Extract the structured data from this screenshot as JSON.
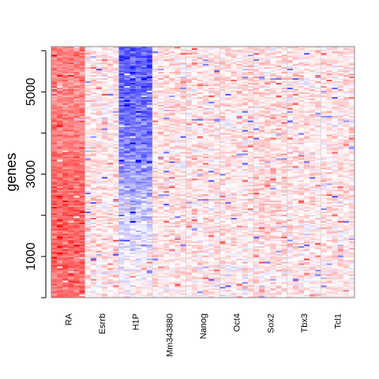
{
  "chart_data": {
    "type": "heatmap",
    "title": "",
    "xlabel": "",
    "ylabel": "genes",
    "ylim": [
      0,
      6100
    ],
    "y_ticks": [
      1000,
      3000,
      5000
    ],
    "y_minor_ticks": [
      0,
      1000,
      2000,
      3000,
      4000,
      5000,
      6000
    ],
    "categories": [
      "RA",
      "Esrrb",
      "H1P",
      "Mm343880",
      "Nanog",
      "Oct4",
      "Sox2",
      "Tbx3",
      "Tcl1"
    ],
    "color_scale": {
      "low": "#0000ff",
      "mid": "#ffffff",
      "high": "#ff0000"
    },
    "column_profile": [
      {
        "name": "RA",
        "mean_by_band": [
          0.55,
          0.6,
          0.62,
          0.55,
          0.5,
          0.48,
          0.5
        ],
        "noise": 0.22
      },
      {
        "name": "Esrrb",
        "mean_by_band": [
          0.05,
          0.1,
          0.12,
          0.1,
          0.08,
          0.1,
          0.1
        ],
        "noise": 0.25
      },
      {
        "name": "H1P",
        "mean_by_band": [
          0.05,
          -0.05,
          -0.2,
          -0.4,
          -0.55,
          -0.6,
          -0.65
        ],
        "noise": 0.25
      },
      {
        "name": "Mm343880",
        "mean_by_band": [
          0.08,
          0.1,
          0.12,
          0.1,
          0.1,
          0.12,
          0.1
        ],
        "noise": 0.25
      },
      {
        "name": "Nanog",
        "mean_by_band": [
          0.08,
          0.1,
          0.1,
          0.1,
          0.08,
          0.1,
          0.1
        ],
        "noise": 0.25
      },
      {
        "name": "Oct4",
        "mean_by_band": [
          0.05,
          0.08,
          0.1,
          0.1,
          0.1,
          0.12,
          0.1
        ],
        "noise": 0.25
      },
      {
        "name": "Sox2",
        "mean_by_band": [
          0.1,
          0.12,
          0.15,
          0.15,
          0.12,
          0.12,
          0.1
        ],
        "noise": 0.25
      },
      {
        "name": "Tbx3",
        "mean_by_band": [
          0.05,
          0.08,
          0.1,
          0.1,
          0.1,
          0.1,
          0.1
        ],
        "noise": 0.25
      },
      {
        "name": "Tcl1",
        "mean_by_band": [
          0.05,
          0.1,
          0.1,
          0.1,
          0.08,
          0.1,
          0.1
        ],
        "noise": 0.25
      }
    ],
    "grid": false,
    "legend": "none"
  }
}
